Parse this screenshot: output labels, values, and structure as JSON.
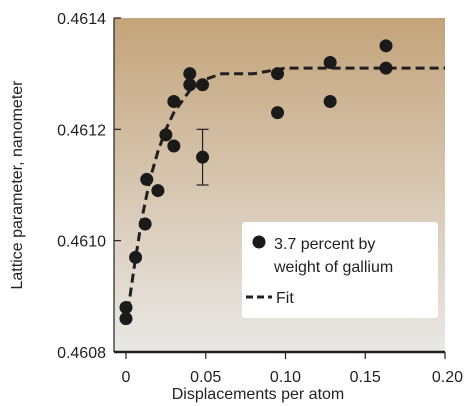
{
  "chart_data": {
    "type": "scatter",
    "title": "",
    "xlabel": "Displacements per atom",
    "ylabel": "Lattice parameter, nanometer",
    "xlim": [
      0,
      0.2
    ],
    "ylim": [
      0.4608,
      0.4614
    ],
    "x_ticks": [
      0,
      0.05,
      0.1,
      0.15,
      0.2
    ],
    "x_tick_labels": [
      "0",
      "0.05",
      "0.10",
      "0.15",
      "0.20"
    ],
    "y_ticks": [
      0.4608,
      0.461,
      0.4612,
      0.4614
    ],
    "y_tick_labels": [
      "0.4608",
      "0.4610",
      "0.4612",
      "0.4614"
    ],
    "grid": false,
    "legend_position": "lower-right",
    "colors": {
      "background_top": "#c4a47a",
      "background_bottom": "#e9e8e6",
      "marker": "#1a1a1a",
      "fit_line": "#231f20",
      "legend_box": "#ffffff"
    },
    "series": [
      {
        "name": "3.7 percent by weight of gallium",
        "kind": "points",
        "points": [
          {
            "x": 0.0,
            "y": 0.46088
          },
          {
            "x": 0.0,
            "y": 0.46086
          },
          {
            "x": 0.006,
            "y": 0.46097
          },
          {
            "x": 0.012,
            "y": 0.46103
          },
          {
            "x": 0.013,
            "y": 0.46111
          },
          {
            "x": 0.02,
            "y": 0.46109
          },
          {
            "x": 0.025,
            "y": 0.46119
          },
          {
            "x": 0.03,
            "y": 0.46117
          },
          {
            "x": 0.03,
            "y": 0.46125
          },
          {
            "x": 0.04,
            "y": 0.4613
          },
          {
            "x": 0.04,
            "y": 0.46128
          },
          {
            "x": 0.048,
            "y": 0.46128
          },
          {
            "x": 0.048,
            "y": 0.46115,
            "err": 5e-05
          },
          {
            "x": 0.095,
            "y": 0.4613
          },
          {
            "x": 0.095,
            "y": 0.46123
          },
          {
            "x": 0.128,
            "y": 0.46132
          },
          {
            "x": 0.128,
            "y": 0.46125
          },
          {
            "x": 0.163,
            "y": 0.46135
          },
          {
            "x": 0.163,
            "y": 0.46131
          }
        ]
      },
      {
        "name": "Fit",
        "kind": "dashed-line",
        "points": [
          {
            "x": 0.0,
            "y": 0.46085
          },
          {
            "x": 0.005,
            "y": 0.46095
          },
          {
            "x": 0.01,
            "y": 0.46104
          },
          {
            "x": 0.015,
            "y": 0.46111
          },
          {
            "x": 0.02,
            "y": 0.46116
          },
          {
            "x": 0.025,
            "y": 0.4612
          },
          {
            "x": 0.03,
            "y": 0.46123
          },
          {
            "x": 0.04,
            "y": 0.46127
          },
          {
            "x": 0.05,
            "y": 0.46129
          },
          {
            "x": 0.06,
            "y": 0.4613
          },
          {
            "x": 0.08,
            "y": 0.4613
          },
          {
            "x": 0.1,
            "y": 0.46131
          },
          {
            "x": 0.15,
            "y": 0.46131
          },
          {
            "x": 0.2,
            "y": 0.46131
          }
        ]
      }
    ],
    "legend": [
      {
        "label_lines": [
          "3.7 percent by",
          "weight of gallium"
        ],
        "symbol": "filled-circle"
      },
      {
        "label_lines": [
          "Fit"
        ],
        "symbol": "dashed-line"
      }
    ]
  }
}
